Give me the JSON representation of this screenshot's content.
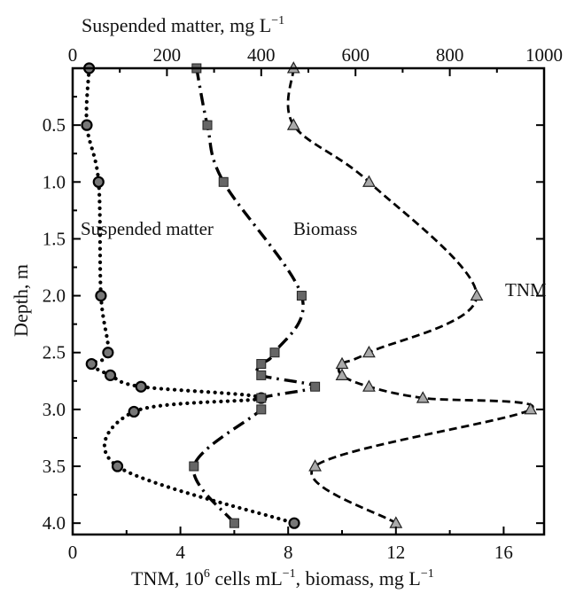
{
  "chart_data": {
    "type": "line",
    "top_axis": {
      "label_text": "Suspended matter, mg L",
      "label_sup": "−1",
      "range": [
        0,
        1000
      ],
      "ticks": [
        0,
        200,
        400,
        600,
        800,
        1000
      ]
    },
    "bottom_axis": {
      "label_part1": "TNM, 10",
      "label_sup1": "6",
      "label_part2": " cells mL",
      "label_sup2": "−1",
      "label_part3": ", biomass, mg L",
      "label_sup3": "−1",
      "range": [
        0,
        17.5
      ],
      "ticks": [
        0,
        4,
        8,
        12,
        16
      ]
    },
    "y_axis": {
      "label": "Depth, m",
      "range": [
        0,
        4.1
      ],
      "ticks": [
        0.5,
        1.0,
        1.5,
        2.0,
        2.5,
        3.0,
        3.5,
        4.0
      ],
      "tick_labels": [
        "0.5",
        "1.0",
        "1.5",
        "2.0",
        "2.5",
        "3.0",
        "3.5",
        "4.0"
      ],
      "inverted": true
    },
    "series": [
      {
        "name": "Suspended matter",
        "axis": "top",
        "marker": "circle",
        "line_style": "dotted",
        "marker_color": "#777777",
        "points": [
          {
            "x": 35,
            "depth": 0.0
          },
          {
            "x": 30,
            "depth": 0.5
          },
          {
            "x": 55,
            "depth": 1.0
          },
          {
            "x": 60,
            "depth": 2.0
          },
          {
            "x": 75,
            "depth": 2.5
          },
          {
            "x": 40,
            "depth": 2.6
          },
          {
            "x": 80,
            "depth": 2.7
          },
          {
            "x": 145,
            "depth": 2.8
          },
          {
            "x": 400,
            "depth": 2.9
          },
          {
            "x": 130,
            "depth": 3.02
          },
          {
            "x": 95,
            "depth": 3.5
          },
          {
            "x": 470,
            "depth": 4.0
          }
        ]
      },
      {
        "name": "Biomass",
        "axis": "bottom",
        "marker": "square",
        "line_style": "dashdot",
        "marker_color": "#666666",
        "points": [
          {
            "x": 4.6,
            "depth": 0.0
          },
          {
            "x": 5.0,
            "depth": 0.5
          },
          {
            "x": 5.6,
            "depth": 1.0
          },
          {
            "x": 8.5,
            "depth": 2.0
          },
          {
            "x": 7.5,
            "depth": 2.5
          },
          {
            "x": 7.0,
            "depth": 2.6
          },
          {
            "x": 7.0,
            "depth": 2.7
          },
          {
            "x": 9.0,
            "depth": 2.8
          },
          {
            "x": 7.0,
            "depth": 2.9
          },
          {
            "x": 7.0,
            "depth": 3.0
          },
          {
            "x": 4.5,
            "depth": 3.5
          },
          {
            "x": 6.0,
            "depth": 4.0
          }
        ]
      },
      {
        "name": "TNM",
        "axis": "bottom",
        "marker": "triangle",
        "line_style": "dashed",
        "marker_color": "#aaaaaa",
        "points": [
          {
            "x": 8.2,
            "depth": 0.0
          },
          {
            "x": 8.2,
            "depth": 0.5
          },
          {
            "x": 11.0,
            "depth": 1.0
          },
          {
            "x": 15.0,
            "depth": 2.0
          },
          {
            "x": 11.0,
            "depth": 2.5
          },
          {
            "x": 10.0,
            "depth": 2.6
          },
          {
            "x": 10.0,
            "depth": 2.7
          },
          {
            "x": 11.0,
            "depth": 2.8
          },
          {
            "x": 13.0,
            "depth": 2.9
          },
          {
            "x": 17.0,
            "depth": 3.0
          },
          {
            "x": 9.0,
            "depth": 3.5
          },
          {
            "x": 12.0,
            "depth": 4.0
          }
        ]
      }
    ]
  }
}
